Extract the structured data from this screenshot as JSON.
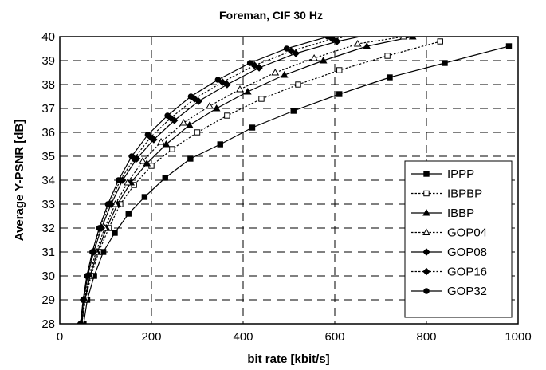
{
  "chart_data": {
    "type": "line",
    "title": "Foreman, CIF 30 Hz",
    "xlabel": "bit rate [kbit/s]",
    "ylabel": "Average Y-PSNR [dB]",
    "xlim": [
      0,
      1000
    ],
    "ylim": [
      28,
      40
    ],
    "xticks": [
      0,
      200,
      400,
      600,
      800,
      1000
    ],
    "yticks": [
      28,
      29,
      30,
      31,
      32,
      33,
      34,
      35,
      36,
      37,
      38,
      39,
      40
    ],
    "grid": true,
    "legend_position": "bottom-right",
    "series": [
      {
        "name": "IPPP",
        "line": "solid",
        "marker": "square",
        "fill": "#000000",
        "x": [
          52,
          60,
          75,
          95,
          120,
          150,
          185,
          230,
          285,
          350,
          420,
          510,
          610,
          720,
          840,
          980
        ],
        "y": [
          28,
          29,
          30,
          31,
          31.8,
          32.6,
          33.3,
          34.1,
          34.9,
          35.5,
          36.2,
          36.9,
          37.6,
          38.3,
          38.9,
          39.6
        ]
      },
      {
        "name": "IBPBP",
        "line": "dotted",
        "marker": "square",
        "fill": "#ffffff",
        "x": [
          48,
          56,
          68,
          85,
          107,
          132,
          162,
          200,
          245,
          300,
          365,
          440,
          520,
          610,
          715,
          830
        ],
        "y": [
          28,
          29,
          30,
          31,
          32,
          33,
          33.8,
          34.6,
          35.3,
          36,
          36.7,
          37.4,
          38,
          38.6,
          39.2,
          39.8
        ]
      },
      {
        "name": "IBBP",
        "line": "solid",
        "marker": "triangle",
        "fill": "#000000",
        "x": [
          48,
          55,
          66,
          82,
          102,
          126,
          155,
          190,
          232,
          283,
          342,
          410,
          490,
          575,
          670,
          770
        ],
        "y": [
          28,
          29,
          30,
          31,
          32,
          33,
          33.9,
          34.7,
          35.5,
          36.3,
          37,
          37.7,
          38.4,
          39,
          39.6,
          40
        ]
      },
      {
        "name": "GOP04",
        "line": "dotted",
        "marker": "triangle",
        "fill": "#ffffff",
        "x": [
          47,
          54,
          64,
          79,
          98,
          121,
          148,
          181,
          221,
          270,
          327,
          393,
          470,
          555,
          650,
          750
        ],
        "y": [
          28,
          29,
          30,
          31,
          32,
          33,
          33.9,
          34.8,
          35.6,
          36.4,
          37.1,
          37.8,
          38.5,
          39.1,
          39.7,
          40
        ]
      },
      {
        "name": "GOP08",
        "line": "solid",
        "marker": "diamond",
        "fill": "#000000",
        "x": [
          46,
          52,
          61,
          74,
          91,
          112,
          137,
          168,
          205,
          250,
          303,
          365,
          435,
          515,
          605,
          705
        ],
        "y": [
          28,
          29,
          30,
          31,
          32,
          33,
          34,
          34.9,
          35.7,
          36.5,
          37.3,
          38,
          38.7,
          39.3,
          39.8,
          40.2
        ]
      },
      {
        "name": "GOP16",
        "line": "dotted",
        "marker": "diamond",
        "fill": "#000000",
        "x": [
          45,
          51,
          60,
          72,
          88,
          108,
          132,
          162,
          198,
          242,
          294,
          355,
          425,
          505,
          595,
          690
        ],
        "y": [
          28,
          29,
          30,
          31,
          32,
          33,
          34,
          34.9,
          35.8,
          36.6,
          37.4,
          38.1,
          38.8,
          39.4,
          39.9,
          40.2
        ]
      },
      {
        "name": "GOP32",
        "line": "solid",
        "marker": "circle",
        "fill": "#000000",
        "x": [
          45,
          51,
          59,
          71,
          86,
          105,
          128,
          157,
          192,
          235,
          286,
          345,
          415,
          495,
          585,
          680
        ],
        "y": [
          28,
          29,
          30,
          31,
          32,
          33,
          34,
          35,
          35.9,
          36.7,
          37.5,
          38.2,
          38.9,
          39.5,
          40,
          40.3
        ]
      }
    ]
  }
}
